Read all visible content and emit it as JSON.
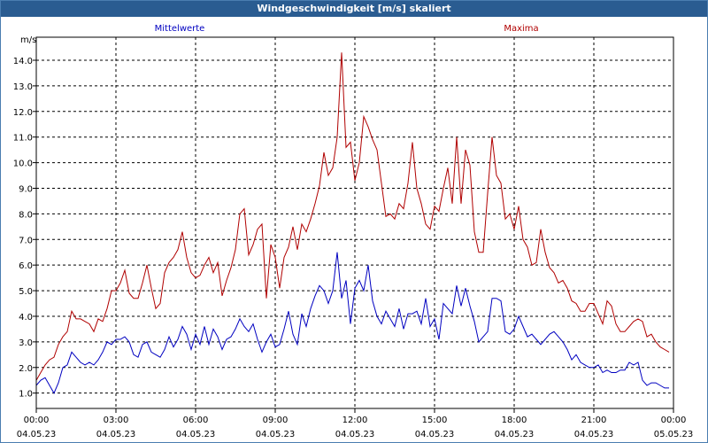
{
  "window": {
    "title": "Windgeschwindigkeit [m/s] skaliert"
  },
  "chart_data": {
    "type": "line",
    "title": "Windgeschwindigkeit [m/s] skaliert",
    "ylabel": "m/s",
    "ylim": [
      0.4,
      14.9
    ],
    "yticks": [
      "1.0",
      "2.0",
      "3.0",
      "4.0",
      "5.0",
      "6.0",
      "7.0",
      "8.0",
      "9.0",
      "10.0",
      "11.0",
      "12.0",
      "13.0",
      "14.0"
    ],
    "xlim": [
      "04.05.23 00:00",
      "05.05.23 00:00"
    ],
    "xticks": [
      {
        "time": "00:00",
        "date": "04.05.23"
      },
      {
        "time": "03:00",
        "date": "04.05.23"
      },
      {
        "time": "06:00",
        "date": "04.05.23"
      },
      {
        "time": "09:00",
        "date": "04.05.23"
      },
      {
        "time": "12:00",
        "date": "04.05.23"
      },
      {
        "time": "15:00",
        "date": "04.05.23"
      },
      {
        "time": "18:00",
        "date": "04.05.23"
      },
      {
        "time": "21:00",
        "date": "04.05.23"
      },
      {
        "time": "00:00",
        "date": "05.05.23"
      }
    ],
    "grid": true,
    "series": [
      {
        "name": "Mittelwerte",
        "color": "#0000c0",
        "points": [
          [
            "00:00",
            1.3
          ],
          [
            "00:10",
            1.5
          ],
          [
            "00:20",
            1.6
          ],
          [
            "00:30",
            1.3
          ],
          [
            "00:40",
            1.0
          ],
          [
            "00:50",
            1.4
          ],
          [
            "01:00",
            2.0
          ],
          [
            "01:10",
            2.1
          ],
          [
            "01:20",
            2.6
          ],
          [
            "01:30",
            2.4
          ],
          [
            "01:40",
            2.2
          ],
          [
            "01:50",
            2.1
          ],
          [
            "02:00",
            2.2
          ],
          [
            "02:10",
            2.1
          ],
          [
            "02:20",
            2.3
          ],
          [
            "02:30",
            2.6
          ],
          [
            "02:40",
            3.0
          ],
          [
            "02:50",
            2.9
          ],
          [
            "03:00",
            3.1
          ],
          [
            "03:10",
            3.1
          ],
          [
            "03:20",
            3.2
          ],
          [
            "03:30",
            3.0
          ],
          [
            "03:40",
            2.5
          ],
          [
            "03:50",
            2.4
          ],
          [
            "04:00",
            2.9
          ],
          [
            "04:10",
            3.0
          ],
          [
            "04:20",
            2.6
          ],
          [
            "04:30",
            2.5
          ],
          [
            "04:40",
            2.4
          ],
          [
            "04:50",
            2.7
          ],
          [
            "05:00",
            3.2
          ],
          [
            "05:10",
            2.8
          ],
          [
            "05:20",
            3.1
          ],
          [
            "05:30",
            3.6
          ],
          [
            "05:40",
            3.3
          ],
          [
            "05:50",
            2.7
          ],
          [
            "06:00",
            3.3
          ],
          [
            "06:10",
            2.9
          ],
          [
            "06:20",
            3.6
          ],
          [
            "06:30",
            2.9
          ],
          [
            "06:40",
            3.5
          ],
          [
            "06:50",
            3.2
          ],
          [
            "07:00",
            2.7
          ],
          [
            "07:10",
            3.1
          ],
          [
            "07:20",
            3.2
          ],
          [
            "07:30",
            3.5
          ],
          [
            "07:40",
            3.9
          ],
          [
            "07:50",
            3.6
          ],
          [
            "08:00",
            3.4
          ],
          [
            "08:10",
            3.7
          ],
          [
            "08:20",
            3.1
          ],
          [
            "08:30",
            2.6
          ],
          [
            "08:40",
            3.0
          ],
          [
            "08:50",
            3.3
          ],
          [
            "09:00",
            2.8
          ],
          [
            "09:10",
            2.9
          ],
          [
            "09:20",
            3.5
          ],
          [
            "09:30",
            4.2
          ],
          [
            "09:40",
            3.3
          ],
          [
            "09:50",
            2.9
          ],
          [
            "10:00",
            4.1
          ],
          [
            "10:10",
            3.6
          ],
          [
            "10:20",
            4.3
          ],
          [
            "10:30",
            4.8
          ],
          [
            "10:40",
            5.2
          ],
          [
            "10:50",
            5.0
          ],
          [
            "11:00",
            4.5
          ],
          [
            "11:10",
            5.0
          ],
          [
            "11:20",
            6.5
          ],
          [
            "11:30",
            4.7
          ],
          [
            "11:40",
            5.4
          ],
          [
            "11:50",
            3.7
          ],
          [
            "12:00",
            5.1
          ],
          [
            "12:10",
            5.4
          ],
          [
            "12:20",
            5.0
          ],
          [
            "12:30",
            6.0
          ],
          [
            "12:40",
            4.6
          ],
          [
            "12:50",
            4.0
          ],
          [
            "13:00",
            3.7
          ],
          [
            "13:10",
            4.2
          ],
          [
            "13:20",
            3.9
          ],
          [
            "13:30",
            3.6
          ],
          [
            "13:40",
            4.3
          ],
          [
            "13:50",
            3.5
          ],
          [
            "14:00",
            4.1
          ],
          [
            "14:10",
            4.1
          ],
          [
            "14:20",
            4.2
          ],
          [
            "14:30",
            3.7
          ],
          [
            "14:40",
            4.7
          ],
          [
            "14:50",
            3.6
          ],
          [
            "15:00",
            3.9
          ],
          [
            "15:10",
            3.1
          ],
          [
            "15:20",
            4.5
          ],
          [
            "15:30",
            4.3
          ],
          [
            "15:40",
            4.1
          ],
          [
            "15:50",
            5.2
          ],
          [
            "16:00",
            4.4
          ],
          [
            "16:10",
            5.1
          ],
          [
            "16:20",
            4.4
          ],
          [
            "16:30",
            3.8
          ],
          [
            "16:40",
            3.0
          ],
          [
            "16:50",
            3.2
          ],
          [
            "17:00",
            3.4
          ],
          [
            "17:10",
            4.7
          ],
          [
            "17:20",
            4.7
          ],
          [
            "17:30",
            4.6
          ],
          [
            "17:40",
            3.4
          ],
          [
            "17:50",
            3.3
          ],
          [
            "18:00",
            3.5
          ],
          [
            "18:10",
            4.0
          ],
          [
            "18:20",
            3.6
          ],
          [
            "18:30",
            3.2
          ],
          [
            "18:40",
            3.3
          ],
          [
            "18:50",
            3.1
          ],
          [
            "19:00",
            2.9
          ],
          [
            "19:10",
            3.1
          ],
          [
            "19:20",
            3.3
          ],
          [
            "19:30",
            3.4
          ],
          [
            "19:40",
            3.2
          ],
          [
            "19:50",
            3.0
          ],
          [
            "20:00",
            2.7
          ],
          [
            "20:10",
            2.3
          ],
          [
            "20:20",
            2.5
          ],
          [
            "20:30",
            2.2
          ],
          [
            "20:40",
            2.1
          ],
          [
            "20:50",
            2.0
          ],
          [
            "21:00",
            2.0
          ],
          [
            "21:10",
            2.1
          ],
          [
            "21:20",
            1.8
          ],
          [
            "21:30",
            1.9
          ],
          [
            "21:40",
            1.8
          ],
          [
            "21:50",
            1.8
          ],
          [
            "22:00",
            1.9
          ],
          [
            "22:10",
            1.9
          ],
          [
            "22:20",
            2.2
          ],
          [
            "22:30",
            2.1
          ],
          [
            "22:40",
            2.2
          ],
          [
            "22:50",
            1.5
          ],
          [
            "23:00",
            1.3
          ],
          [
            "23:10",
            1.4
          ],
          [
            "23:20",
            1.4
          ],
          [
            "23:30",
            1.3
          ],
          [
            "23:40",
            1.2
          ],
          [
            "23:50",
            1.2
          ]
        ]
      },
      {
        "name": "Maxima",
        "color": "#b00000",
        "points": [
          [
            "00:00",
            1.5
          ],
          [
            "00:10",
            1.8
          ],
          [
            "00:20",
            2.1
          ],
          [
            "00:30",
            2.3
          ],
          [
            "00:40",
            2.4
          ],
          [
            "00:50",
            2.9
          ],
          [
            "01:00",
            3.2
          ],
          [
            "01:10",
            3.4
          ],
          [
            "01:20",
            4.2
          ],
          [
            "01:30",
            3.9
          ],
          [
            "01:40",
            3.9
          ],
          [
            "01:50",
            3.8
          ],
          [
            "02:00",
            3.7
          ],
          [
            "02:10",
            3.4
          ],
          [
            "02:20",
            3.9
          ],
          [
            "02:30",
            3.8
          ],
          [
            "02:40",
            4.3
          ],
          [
            "02:50",
            5.0
          ],
          [
            "03:00",
            5.0
          ],
          [
            "03:10",
            5.3
          ],
          [
            "03:20",
            5.8
          ],
          [
            "03:30",
            4.9
          ],
          [
            "03:40",
            4.7
          ],
          [
            "03:50",
            4.7
          ],
          [
            "04:00",
            5.3
          ],
          [
            "04:10",
            6.0
          ],
          [
            "04:20",
            5.1
          ],
          [
            "04:30",
            4.3
          ],
          [
            "04:40",
            4.5
          ],
          [
            "04:50",
            5.7
          ],
          [
            "05:00",
            6.1
          ],
          [
            "05:10",
            6.3
          ],
          [
            "05:20",
            6.6
          ],
          [
            "05:30",
            7.3
          ],
          [
            "05:40",
            6.3
          ],
          [
            "05:50",
            5.7
          ],
          [
            "06:00",
            5.5
          ],
          [
            "06:10",
            5.6
          ],
          [
            "06:20",
            6.0
          ],
          [
            "06:30",
            6.3
          ],
          [
            "06:40",
            5.7
          ],
          [
            "06:50",
            6.1
          ],
          [
            "07:00",
            4.8
          ],
          [
            "07:10",
            5.4
          ],
          [
            "07:20",
            5.9
          ],
          [
            "07:30",
            6.6
          ],
          [
            "07:40",
            8.0
          ],
          [
            "07:50",
            8.2
          ],
          [
            "08:00",
            6.4
          ],
          [
            "08:10",
            6.8
          ],
          [
            "08:20",
            7.4
          ],
          [
            "08:30",
            7.6
          ],
          [
            "08:40",
            4.7
          ],
          [
            "08:50",
            6.8
          ],
          [
            "09:00",
            6.3
          ],
          [
            "09:10",
            5.1
          ],
          [
            "09:20",
            6.3
          ],
          [
            "09:30",
            6.7
          ],
          [
            "09:40",
            7.5
          ],
          [
            "09:50",
            6.6
          ],
          [
            "10:00",
            7.6
          ],
          [
            "10:10",
            7.3
          ],
          [
            "10:20",
            7.8
          ],
          [
            "10:30",
            8.4
          ],
          [
            "10:40",
            9.1
          ],
          [
            "10:50",
            10.4
          ],
          [
            "11:00",
            9.5
          ],
          [
            "11:10",
            9.8
          ],
          [
            "11:20",
            11.0
          ],
          [
            "11:30",
            14.3
          ],
          [
            "11:40",
            10.6
          ],
          [
            "11:50",
            10.8
          ],
          [
            "12:00",
            9.3
          ],
          [
            "12:10",
            10.0
          ],
          [
            "12:20",
            11.8
          ],
          [
            "12:30",
            11.4
          ],
          [
            "12:40",
            10.9
          ],
          [
            "12:50",
            10.5
          ],
          [
            "13:00",
            9.2
          ],
          [
            "13:10",
            7.9
          ],
          [
            "13:20",
            8.0
          ],
          [
            "13:30",
            7.8
          ],
          [
            "13:40",
            8.4
          ],
          [
            "13:50",
            8.2
          ],
          [
            "14:00",
            9.2
          ],
          [
            "14:10",
            10.8
          ],
          [
            "14:20",
            9.0
          ],
          [
            "14:30",
            8.4
          ],
          [
            "14:40",
            7.6
          ],
          [
            "14:50",
            7.4
          ],
          [
            "15:00",
            8.3
          ],
          [
            "15:10",
            8.1
          ],
          [
            "15:20",
            9.0
          ],
          [
            "15:30",
            9.8
          ],
          [
            "15:40",
            8.4
          ],
          [
            "15:50",
            11.0
          ],
          [
            "16:00",
            8.4
          ],
          [
            "16:10",
            10.5
          ],
          [
            "16:20",
            9.9
          ],
          [
            "16:30",
            7.3
          ],
          [
            "16:40",
            6.5
          ],
          [
            "16:50",
            6.5
          ],
          [
            "17:00",
            8.8
          ],
          [
            "17:10",
            11.0
          ],
          [
            "17:20",
            9.5
          ],
          [
            "17:30",
            9.2
          ],
          [
            "17:40",
            7.8
          ],
          [
            "17:50",
            8.0
          ],
          [
            "18:00",
            7.4
          ],
          [
            "18:10",
            8.3
          ],
          [
            "18:20",
            7.0
          ],
          [
            "18:30",
            6.7
          ],
          [
            "18:40",
            6.0
          ],
          [
            "18:50",
            6.1
          ],
          [
            "19:00",
            7.4
          ],
          [
            "19:10",
            6.5
          ],
          [
            "19:20",
            5.9
          ],
          [
            "19:30",
            5.7
          ],
          [
            "19:40",
            5.3
          ],
          [
            "19:50",
            5.4
          ],
          [
            "20:00",
            5.1
          ],
          [
            "20:10",
            4.6
          ],
          [
            "20:20",
            4.5
          ],
          [
            "20:30",
            4.2
          ],
          [
            "20:40",
            4.2
          ],
          [
            "20:50",
            4.5
          ],
          [
            "21:00",
            4.5
          ],
          [
            "21:10",
            4.1
          ],
          [
            "21:20",
            3.7
          ],
          [
            "21:30",
            4.6
          ],
          [
            "21:40",
            4.4
          ],
          [
            "21:50",
            3.7
          ],
          [
            "22:00",
            3.4
          ],
          [
            "22:10",
            3.4
          ],
          [
            "22:20",
            3.6
          ],
          [
            "22:30",
            3.8
          ],
          [
            "22:40",
            3.9
          ],
          [
            "22:50",
            3.8
          ],
          [
            "23:00",
            3.2
          ],
          [
            "23:10",
            3.3
          ],
          [
            "23:20",
            3.0
          ],
          [
            "23:30",
            2.8
          ],
          [
            "23:40",
            2.7
          ],
          [
            "23:50",
            2.6
          ]
        ]
      }
    ]
  }
}
